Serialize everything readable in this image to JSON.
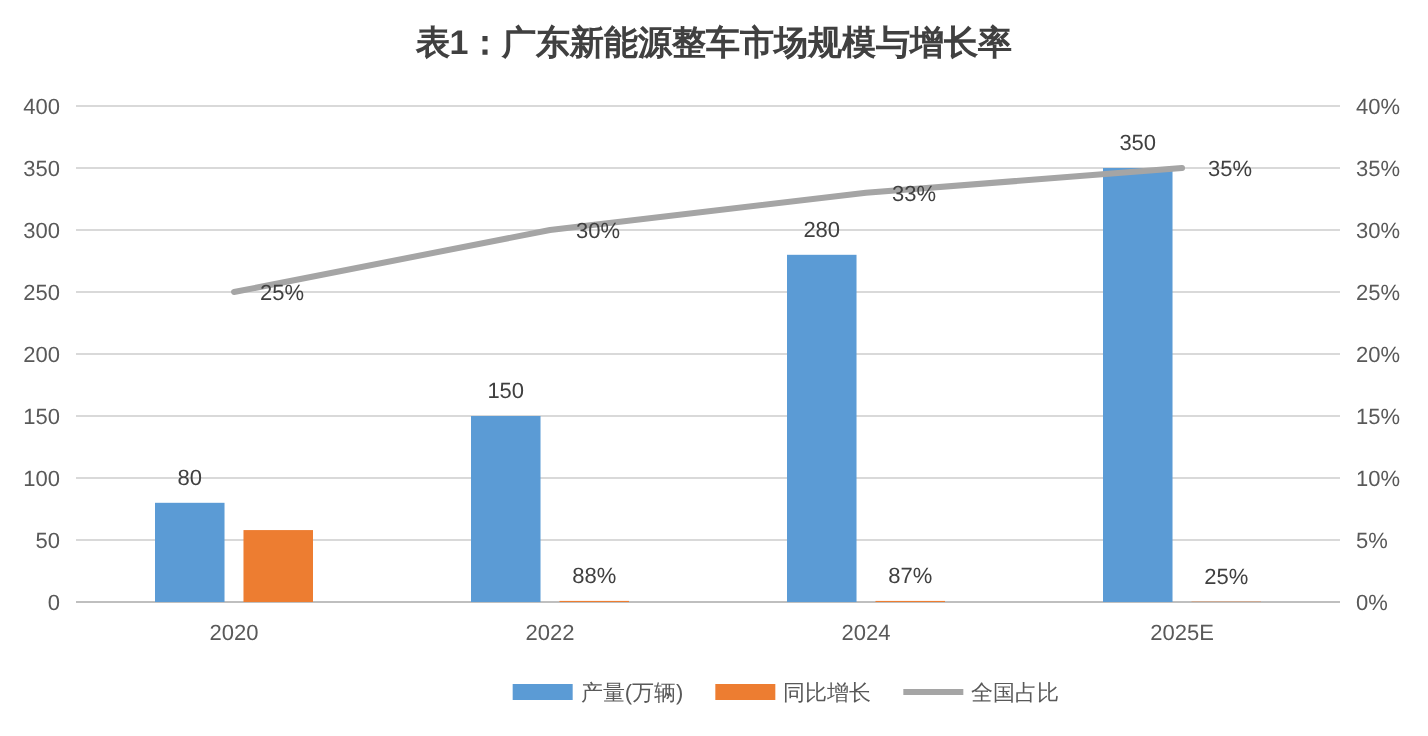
{
  "chart_data": {
    "type": "bar",
    "title": "表1：广东新能源整车市场规模与增长率",
    "categories": [
      "2020",
      "2022",
      "2024",
      "2025E"
    ],
    "series": [
      {
        "name": "产量(万辆)",
        "color": "#5b9bd5",
        "values": [
          80,
          150,
          280,
          350
        ],
        "value_labels": [
          "80",
          "150",
          "280",
          "350"
        ]
      },
      {
        "name": "同比增长",
        "color": "#ed7d31",
        "values": [
          58,
          0.88,
          0.87,
          0.25
        ],
        "value_labels": [
          null,
          "88%",
          "87%",
          "25%"
        ]
      },
      {
        "name": "全国占比",
        "type": "line",
        "axis": "y2",
        "color": "#a5a5a5",
        "values": [
          25,
          30,
          33,
          35
        ],
        "value_labels": [
          "25%",
          "30%",
          "33%",
          "35%"
        ]
      }
    ],
    "ylim": [
      0,
      400
    ],
    "yticks": [
      0,
      50,
      100,
      150,
      200,
      250,
      300,
      350,
      400
    ],
    "y2lim": [
      0,
      40
    ],
    "y2ticks": [
      {
        "value": 0,
        "label": "0%"
      },
      {
        "value": 5,
        "label": "5%"
      },
      {
        "value": 10,
        "label": "10%"
      },
      {
        "value": 15,
        "label": "15%"
      },
      {
        "value": 20,
        "label": "20%"
      },
      {
        "value": 25,
        "label": "25%"
      },
      {
        "value": 30,
        "label": "30%"
      },
      {
        "value": 35,
        "label": "35%"
      },
      {
        "value": 40,
        "label": "40%"
      }
    ],
    "grid": "y",
    "legend": "bottom"
  }
}
